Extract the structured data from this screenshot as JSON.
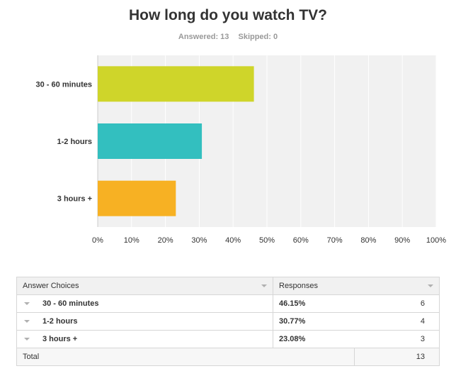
{
  "title": "How long do you watch TV?",
  "answered_label": "Answered: 13",
  "skipped_label": "Skipped: 0",
  "chart_data": {
    "type": "bar",
    "orientation": "horizontal",
    "categories": [
      "30 - 60 minutes",
      "1-2 hours",
      "3 hours +"
    ],
    "values": [
      46.15,
      30.77,
      23.08
    ],
    "colors": [
      "#cfd52a",
      "#33bfbf",
      "#f7b123"
    ],
    "xticks": [
      "0%",
      "10%",
      "20%",
      "30%",
      "40%",
      "50%",
      "60%",
      "70%",
      "80%",
      "90%",
      "100%"
    ],
    "xlim": [
      0,
      100
    ],
    "grid": true
  },
  "table": {
    "headers": [
      "Answer Choices",
      "Responses"
    ],
    "rows": [
      {
        "choice": "30 - 60 minutes",
        "percent": "46.15%",
        "count": "6"
      },
      {
        "choice": "1-2 hours",
        "percent": "30.77%",
        "count": "4"
      },
      {
        "choice": "3 hours +",
        "percent": "23.08%",
        "count": "3"
      }
    ],
    "total_label": "Total",
    "total_count": "13"
  }
}
